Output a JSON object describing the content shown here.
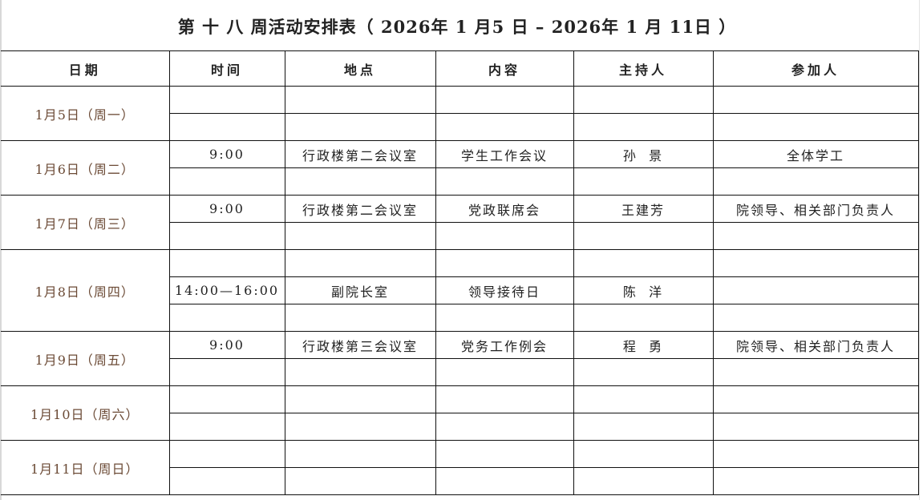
{
  "title": "第 十 八 周活动安排表（ 2026年 1 月5 日 – 2026年 1 月 11日 ）",
  "columns": [
    "日期",
    "时间",
    "地点",
    "内容",
    "主持人",
    "参加人"
  ],
  "days": [
    {
      "date": "1月5日（周一）",
      "rows": [
        [
          "",
          "",
          "",
          "",
          ""
        ],
        [
          "",
          "",
          "",
          "",
          ""
        ]
      ]
    },
    {
      "date": "1月6日（周二）",
      "rows": [
        [
          "9:00",
          "行政楼第二会议室",
          "学生工作会议",
          "孙  景",
          "全体学工"
        ],
        [
          "",
          "",
          "",
          "",
          ""
        ]
      ]
    },
    {
      "date": "1月7日（周三）",
      "rows": [
        [
          "9:00",
          "行政楼第二会议室",
          "党政联席会",
          "王建芳",
          "院领导、相关部门负责人"
        ],
        [
          "",
          "",
          "",
          "",
          ""
        ]
      ]
    },
    {
      "date": "1月8日（周四）",
      "rows": [
        [
          "",
          "",
          "",
          "",
          ""
        ],
        [
          "14:00—16:00",
          "副院长室",
          "领导接待日",
          "陈  洋",
          ""
        ],
        [
          "",
          "",
          "",
          "",
          ""
        ]
      ]
    },
    {
      "date": "1月9日（周五）",
      "rows": [
        [
          "9:00",
          "行政楼第三会议室",
          "党务工作例会",
          "程  勇",
          "院领导、相关部门负责人"
        ],
        [
          "",
          "",
          "",
          "",
          ""
        ]
      ]
    },
    {
      "date": "1月10日（周六）",
      "rows": [
        [
          "",
          "",
          "",
          "",
          ""
        ],
        [
          "",
          "",
          "",
          "",
          ""
        ]
      ]
    },
    {
      "date": "1月11日（周日）",
      "rows": [
        [
          "",
          "",
          "",
          "",
          ""
        ],
        [
          "",
          "",
          "",
          "",
          ""
        ]
      ]
    }
  ],
  "colors": {
    "date_text": "#6b4a35",
    "border": "#111111"
  }
}
